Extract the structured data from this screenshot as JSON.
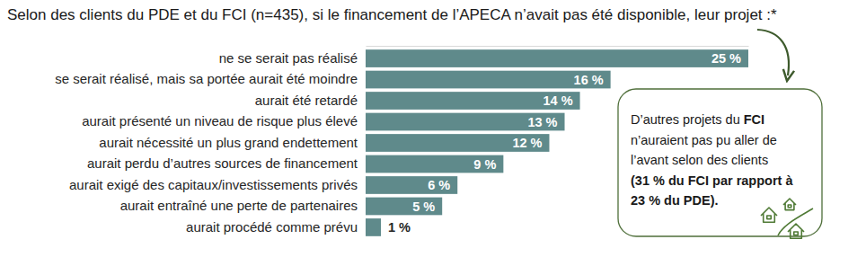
{
  "chart_data": {
    "type": "bar",
    "orientation": "horizontal",
    "title": "Selon des clients du PDE et du FCI (n=435), si le financement de l’APECA n’avait pas été disponible, leur projet :*",
    "categories": [
      "ne se serait pas réalisé",
      "se serait réalisé, mais sa portée aurait été moindre",
      "aurait été retardé",
      "aurait présenté un niveau de risque plus élevé",
      "aurait nécessité un plus grand endettement",
      "aurait perdu d’autres sources de financement",
      "aurait exigé des capitaux/investissements privés",
      "aurait entraîné une perte de partenaires",
      "aurait procédé comme prévu"
    ],
    "values": [
      25,
      16,
      14,
      13,
      12,
      9,
      6,
      5,
      1
    ],
    "value_labels": [
      "25 %",
      "16 %",
      "14 %",
      "13 %",
      "12 %",
      "9 %",
      "6 %",
      "5 %",
      "1 %"
    ],
    "color": "#5f8a8b",
    "xlim": [
      0,
      25
    ],
    "xticks": [],
    "tick_labels": "y",
    "data_labels": true,
    "grid": false,
    "annotation": [
      [
        "D’autres projets du ",
        "FCI"
      ],
      [
        "n’auraient pas pu aller de"
      ],
      [
        "l’avant selon des clients"
      ],
      [
        "(31 % du FCI par rapport à"
      ],
      [
        "23 % du PDE)."
      ]
    ]
  }
}
